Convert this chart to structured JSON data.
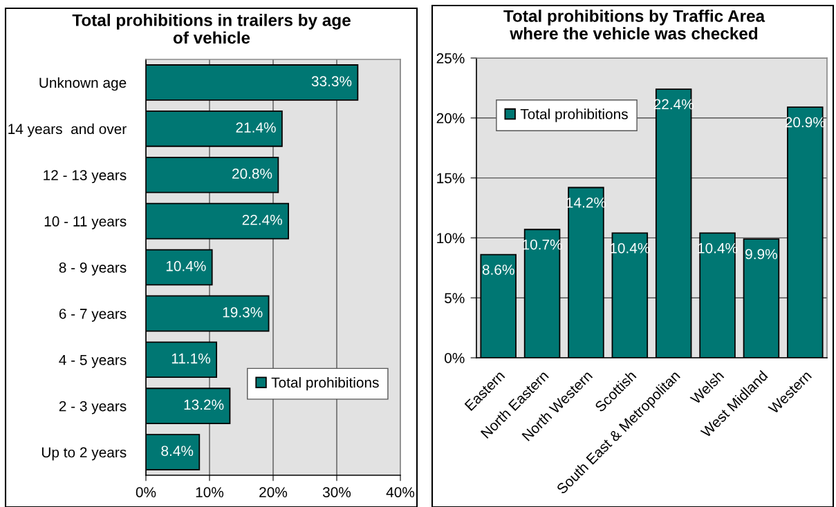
{
  "chart_data": [
    {
      "type": "bar",
      "orientation": "horizontal",
      "title": "Total prohibitions in trailers by age of vehicle",
      "categories": [
        "Unknown age",
        "14 years  and over",
        "12 - 13 years",
        "10 - 11 years",
        "8 - 9 years",
        "6 - 7 years",
        "4 - 5 years",
        "2 - 3 years",
        "Up to 2 years"
      ],
      "series": [
        {
          "name": "Total prohibitions",
          "color": "#007773",
          "values": [
            33.3,
            21.4,
            20.8,
            22.4,
            10.4,
            19.3,
            11.1,
            13.2,
            8.4
          ],
          "value_labels": [
            "33.3%",
            "21.4%",
            "20.8%",
            "22.4%",
            "10.4%",
            "19.3%",
            "11.1%",
            "13.2%",
            "8.4%"
          ]
        }
      ],
      "xlim": [
        0,
        40
      ],
      "xticks": [
        {
          "value": 0,
          "label": "0%"
        },
        {
          "value": 10,
          "label": "10%"
        },
        {
          "value": 20,
          "label": "20%"
        },
        {
          "value": 30,
          "label": "30%"
        },
        {
          "value": 40,
          "label": "40%"
        }
      ],
      "grid": "x",
      "legend": "bottom right"
    },
    {
      "type": "bar",
      "title": "Total prohibitions by Traffic Area where the vehicle was checked",
      "categories": [
        "Eastern",
        "North Eastern",
        "North Western",
        "Scottish",
        "South East & Metropolitan",
        "Welsh",
        "West Midland",
        "Western"
      ],
      "series": [
        {
          "name": "Total prohibitions",
          "color": "#007773",
          "values": [
            8.6,
            10.7,
            14.2,
            10.4,
            22.4,
            10.4,
            9.9,
            20.9
          ],
          "value_labels": [
            "8.6%",
            "10.7%",
            "14.2%",
            "10.4%",
            "22.4%",
            "10.4%",
            "9.9%",
            "20.9%"
          ]
        }
      ],
      "ylim": [
        0,
        25
      ],
      "yticks": [
        {
          "value": 0,
          "label": "0%"
        },
        {
          "value": 5,
          "label": "5%"
        },
        {
          "value": 10,
          "label": "10%"
        },
        {
          "value": 15,
          "label": "15%"
        },
        {
          "value": 20,
          "label": "20%"
        },
        {
          "value": 25,
          "label": "25%"
        }
      ],
      "grid": "y",
      "legend": "top left"
    }
  ]
}
